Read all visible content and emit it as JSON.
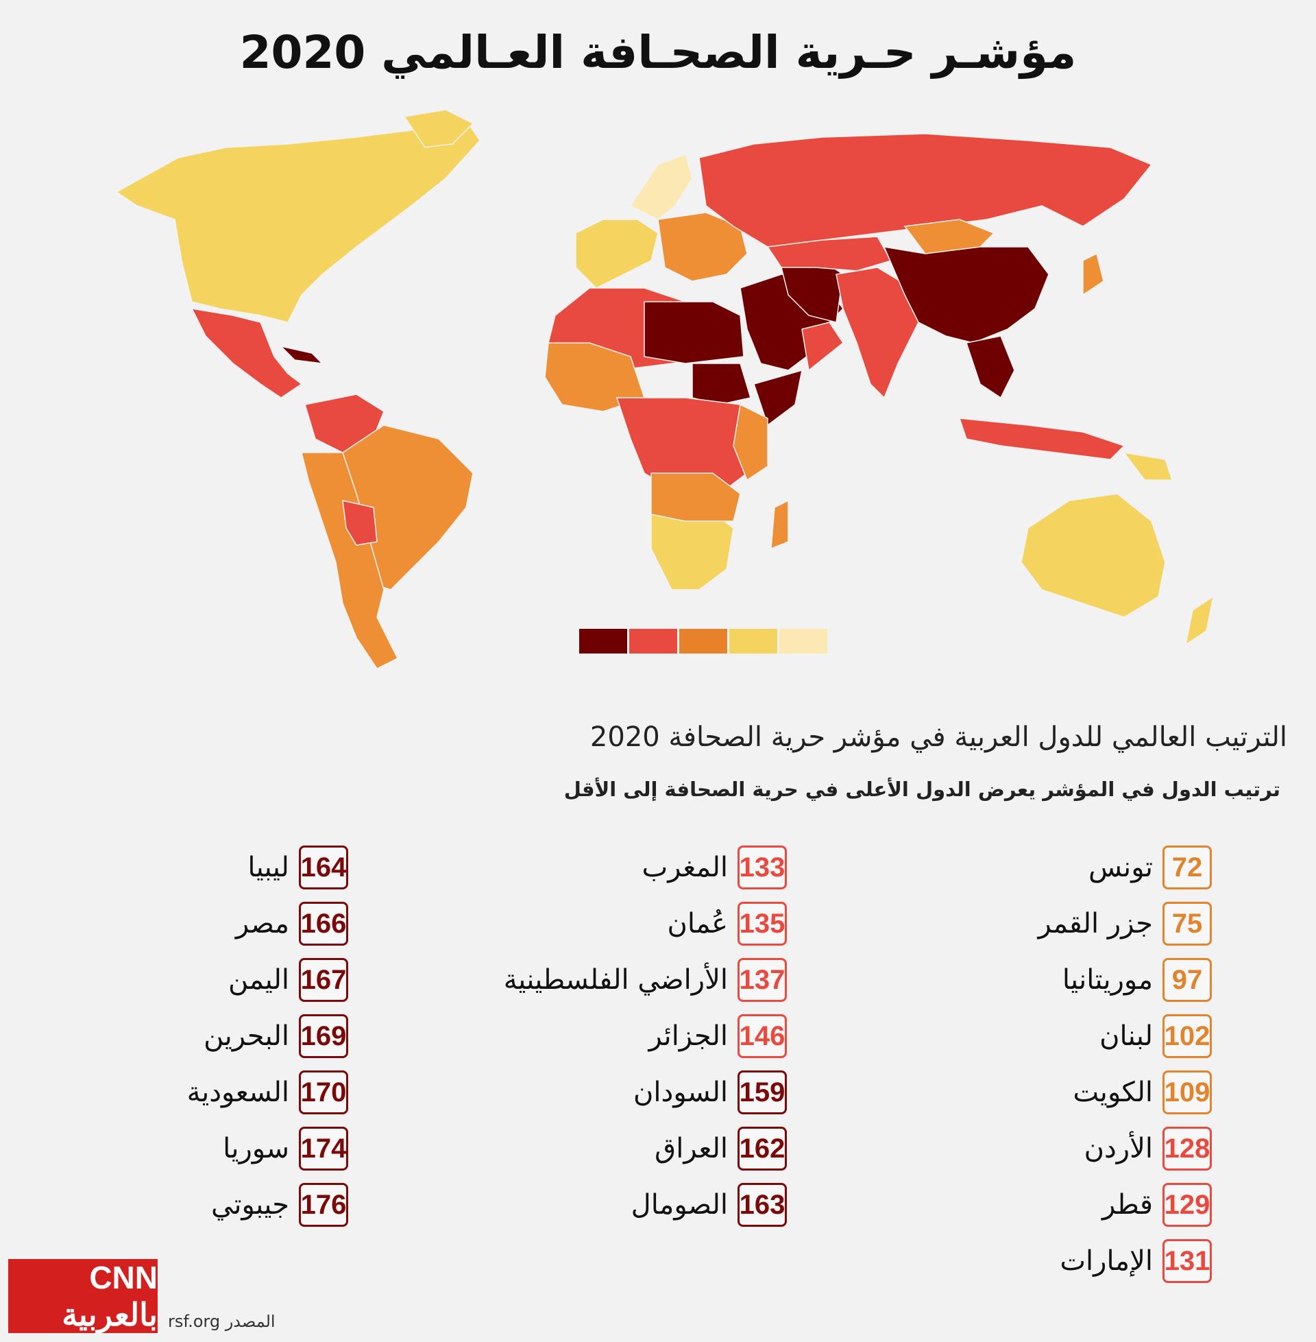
{
  "title": "مؤشـر حـرية الصحـافة العـالمي 2020",
  "legend_colors": [
    "#6e0001",
    "#e84a40",
    "#e8822a",
    "#f5d35f",
    "#fce8b2"
  ],
  "map_colors": {
    "good": "#fce8b2",
    "satisfactory": "#f5d35f",
    "problematic": "#ee8f35",
    "difficult": "#e84a40",
    "very_serious": "#6e0001"
  },
  "subtitle": "الترتيب العالمي للدول العربية في مؤشر حرية الصحافة 2020",
  "note": "ترتيب الدول في المؤشر يعرض الدول الأعلى في حرية الصحافة إلى الأقل",
  "columns": [
    [
      {
        "rank": "72",
        "name": "تونس",
        "color": "#e0842d"
      },
      {
        "rank": "75",
        "name": "جزر القمر",
        "color": "#e0842d"
      },
      {
        "rank": "97",
        "name": "موريتانيا",
        "color": "#e0842d"
      },
      {
        "rank": "102",
        "name": "لبنان",
        "color": "#e0842d"
      },
      {
        "rank": "109",
        "name": "الكويت",
        "color": "#e0842d"
      },
      {
        "rank": "128",
        "name": "الأردن",
        "color": "#e84a40"
      },
      {
        "rank": "129",
        "name": "قطر",
        "color": "#e84a40"
      },
      {
        "rank": "131",
        "name": "الإمارات",
        "color": "#e84a40"
      }
    ],
    [
      {
        "rank": "133",
        "name": "المغرب",
        "color": "#e84a40"
      },
      {
        "rank": "135",
        "name": "عُمان",
        "color": "#e84a40"
      },
      {
        "rank": "137",
        "name": "الأراضي الفلسطينية",
        "color": "#e84a40"
      },
      {
        "rank": "146",
        "name": "الجزائر",
        "color": "#e84a40"
      },
      {
        "rank": "159",
        "name": "السودان",
        "color": "#7a0a0a"
      },
      {
        "rank": "162",
        "name": "العراق",
        "color": "#7a0a0a"
      },
      {
        "rank": "163",
        "name": "الصومال",
        "color": "#7a0a0a"
      }
    ],
    [
      {
        "rank": "164",
        "name": "ليبيا",
        "color": "#7a0a0a"
      },
      {
        "rank": "166",
        "name": "مصر",
        "color": "#7a0a0a"
      },
      {
        "rank": "167",
        "name": "اليمن",
        "color": "#7a0a0a"
      },
      {
        "rank": "169",
        "name": "البحرين",
        "color": "#7a0a0a"
      },
      {
        "rank": "170",
        "name": "السعودية",
        "color": "#7a0a0a"
      },
      {
        "rank": "174",
        "name": "سوريا",
        "color": "#7a0a0a"
      },
      {
        "rank": "176",
        "name": "جيبوتي",
        "color": "#7a0a0a"
      }
    ]
  ],
  "logo_text": "CNN بالعربية",
  "source_label": "المصدر",
  "source_value": "rsf.org"
}
